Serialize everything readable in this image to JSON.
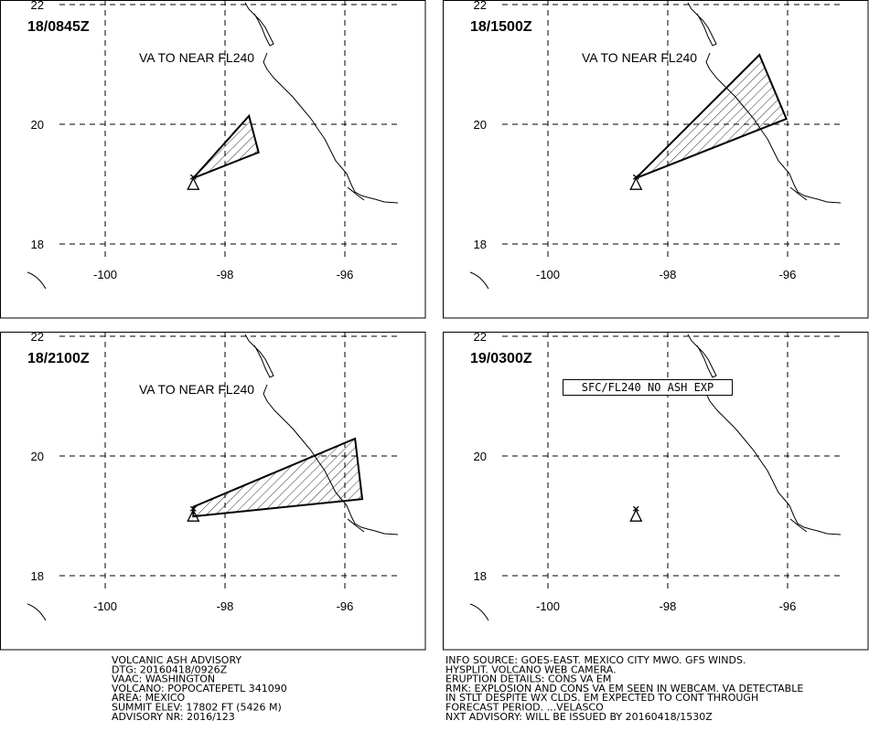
{
  "lat_ticks": [
    22,
    20,
    18
  ],
  "lon_ticks": [
    -100,
    -98,
    -96
  ],
  "volcano": {
    "lat": 19.02,
    "lon": -98.53
  },
  "panels": [
    {
      "time": "18/0845Z",
      "label": "VA TO NEAR FL240",
      "label_box": false,
      "polygon": [
        [
          19.1,
          -98.53
        ],
        [
          20.14,
          -97.6
        ],
        [
          19.53,
          -97.44
        ]
      ]
    },
    {
      "time": "18/1500Z",
      "label": "VA TO NEAR FL240",
      "label_box": false,
      "polygon": [
        [
          19.1,
          -98.53
        ],
        [
          21.16,
          -96.47
        ],
        [
          20.09,
          -96.02
        ]
      ]
    },
    {
      "time": "18/2100Z",
      "label": "VA TO NEAR FL240",
      "label_box": false,
      "polygon": [
        [
          19.15,
          -98.53
        ],
        [
          20.29,
          -95.83
        ],
        [
          19.28,
          -95.71
        ],
        [
          18.99,
          -98.53
        ]
      ]
    },
    {
      "time": "19/0300Z",
      "label": "SFC/FL240 NO ASH EXP",
      "label_box": true,
      "polygon": []
    }
  ],
  "advisory_left": [
    "VOLCANIC ASH ADVISORY",
    "DTG: 20160418/0926Z",
    "VAAC: WASHINGTON",
    "VOLCANO: POPOCATEPETL 341090",
    "AREA: MEXICO",
    "SUMMIT ELEV: 17802 FT (5426 M)",
    "ADVISORY NR: 2016/123"
  ],
  "advisory_right": [
    "INFO SOURCE: GOES-EAST. MEXICO CITY MWO. GFS WINDS.",
    "HYSPLIT. VOLCANO WEB CAMERA.",
    "ERUPTION DETAILS: CONS VA EM",
    "RMK: EXPLOSION AND CONS VA EM SEEN IN WEBCAM. VA DETECTABLE",
    "IN STLT DESPITE WX CLDS. EM EXPECTED TO CONT THROUGH",
    "FORECAST PERIOD. ...VELASCO",
    "NXT ADVISORY: WILL BE ISSUED BY 20160418/1530Z"
  ]
}
